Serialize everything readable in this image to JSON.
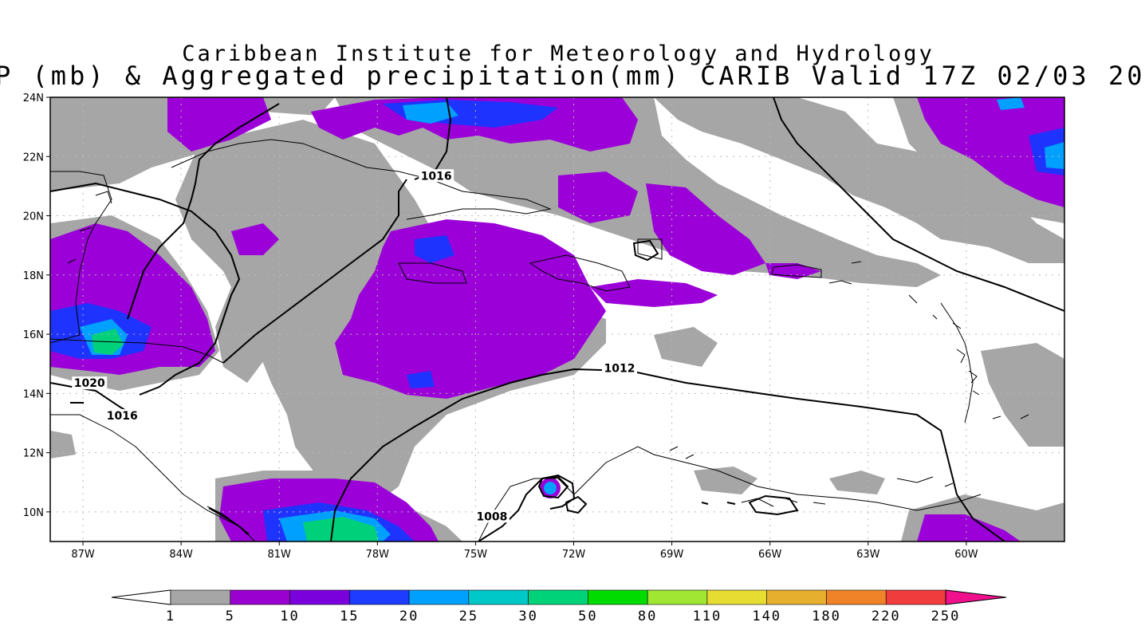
{
  "titles": {
    "line1": "Caribbean Institute for Meteorology and Hydrology",
    "line2": "P (mb) & Aggregated precipitation(mm) CARIB Valid 17Z 02/03 20"
  },
  "map": {
    "lon_range": [
      -88.0,
      -57.0
    ],
    "lat_range": [
      9.0,
      24.0
    ],
    "lat_ticks": [
      {
        "v": 24,
        "t": "24N"
      },
      {
        "v": 22,
        "t": "22N"
      },
      {
        "v": 20,
        "t": "20N"
      },
      {
        "v": 18,
        "t": "18N"
      },
      {
        "v": 16,
        "t": "16N"
      },
      {
        "v": 14,
        "t": "14N"
      },
      {
        "v": 12,
        "t": "12N"
      },
      {
        "v": 10,
        "t": "10N"
      }
    ],
    "lon_ticks": [
      {
        "v": -87,
        "t": "87W"
      },
      {
        "v": -84,
        "t": "84W"
      },
      {
        "v": -81,
        "t": "81W"
      },
      {
        "v": -78,
        "t": "78W"
      },
      {
        "v": -75,
        "t": "75W"
      },
      {
        "v": -72,
        "t": "72W"
      },
      {
        "v": -69,
        "t": "69W"
      },
      {
        "v": -66,
        "t": "66W"
      },
      {
        "v": -63,
        "t": "63W"
      },
      {
        "v": -60,
        "t": "60W"
      }
    ],
    "grid": true,
    "isobar_labels": [
      {
        "text": "1016",
        "lon": -76.2,
        "lat": 21.3
      },
      {
        "text": "1012",
        "lon": -70.6,
        "lat": 14.8
      },
      {
        "text": "1020",
        "lon": -86.8,
        "lat": 14.3
      },
      {
        "text": "1016",
        "lon": -85.8,
        "lat": 13.2
      },
      {
        "text": "1008",
        "lon": -74.5,
        "lat": 9.8
      }
    ],
    "precip_colors": {
      "light": "#a6a6a6",
      "moderate": "#9b00d8",
      "heavy": "#1f33ff",
      "very_heavy": "#00a0ff",
      "extreme": "#00d07a"
    }
  },
  "colorbar": {
    "labels": [
      "1",
      "5",
      "10",
      "15",
      "20",
      "25",
      "30",
      "50",
      "80",
      "110",
      "140",
      "180",
      "220",
      "250"
    ],
    "colors": [
      "#a6a6a6",
      "#9a00d0",
      "#7a00dc",
      "#1e3cff",
      "#00a0ff",
      "#00c8c8",
      "#00d27a",
      "#00dc00",
      "#a0e632",
      "#e6dc32",
      "#e6af2d",
      "#f08228",
      "#f03c3c"
    ],
    "under_color": "#ffffff",
    "over_color": "#f0108c"
  }
}
